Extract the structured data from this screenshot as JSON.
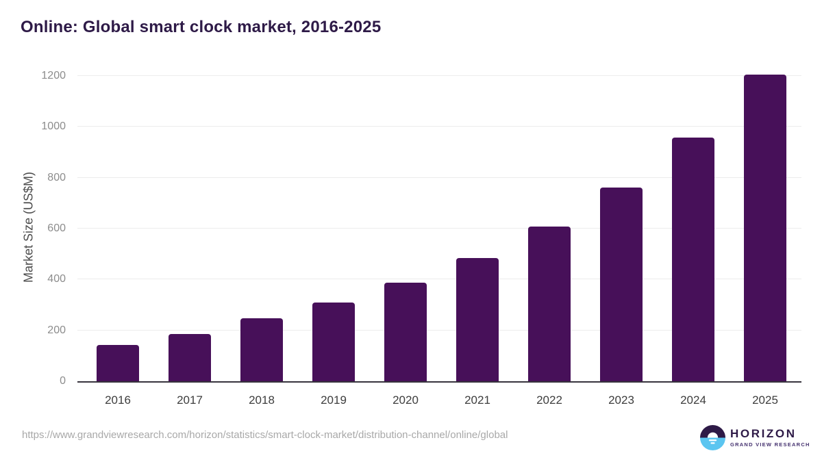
{
  "chart_data": {
    "type": "bar",
    "title": "Online: Global smart clock market, 2016-2025",
    "xlabel": "",
    "ylabel": "Market Size (US$M)",
    "categories": [
      "2016",
      "2017",
      "2018",
      "2019",
      "2020",
      "2021",
      "2022",
      "2023",
      "2024",
      "2025"
    ],
    "values": [
      143,
      186,
      247,
      310,
      387,
      485,
      609,
      762,
      959,
      1205
    ],
    "yticks": [
      0,
      200,
      400,
      600,
      800,
      1000,
      1200
    ],
    "ylim": [
      0,
      1220
    ],
    "grid": true,
    "legend": false,
    "bar_color": "#471059"
  },
  "footer": {
    "source_url": "https://www.grandviewresearch.com/horizon/statistics/smart-clock-market/distribution-channel/online/global",
    "logo": {
      "title": "HORIZON",
      "subtitle": "GRAND VIEW RESEARCH"
    }
  },
  "colors": {
    "bar": "#471059",
    "title_text": "#2e1a47",
    "logo_purple": "#2e1a47",
    "logo_blue": "#5bc5f0",
    "gridline": "#ececec",
    "axis_line": "#37333d",
    "ytick_text": "#8c8c8c",
    "xtick_text": "#3d3d3d",
    "source_text": "#a8a8a8"
  }
}
